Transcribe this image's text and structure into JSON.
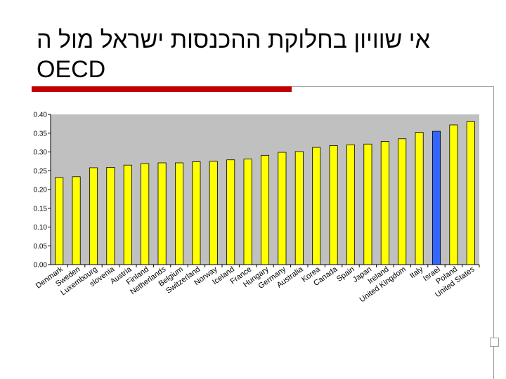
{
  "slide": {
    "title_line1": "אי שוויון בחלוקת ההכנסות ישראל מול ה",
    "title_line2": "OECD"
  },
  "colors": {
    "bar_default": "#ffff00",
    "bar_highlight": "#3366ff",
    "plot_background": "#c0c0c0",
    "accent_red": "#c00000"
  },
  "chart_data": {
    "type": "bar",
    "title": "",
    "xlabel": "",
    "ylabel": "",
    "ylim": [
      0,
      0.4
    ],
    "yticks": [
      "0.00",
      "0.05",
      "0.10",
      "0.15",
      "0.20",
      "0.25",
      "0.30",
      "0.35",
      "0.40"
    ],
    "grid": false,
    "legend": "none",
    "highlight_category": "Israel",
    "categories": [
      "Denmark",
      "Sweden",
      "Luxembourg",
      "slovenia",
      "Austria",
      "Finland",
      "Netherlands",
      "Belgium",
      "Switzerland",
      "Norway",
      "Iceland",
      "France",
      "Hungary",
      "Germany",
      "Australia",
      "Korea",
      "Canada",
      "Spain",
      "Japan",
      "Ireland",
      "United Kingdom",
      "Italy",
      "Israel",
      "Poland",
      "United States"
    ],
    "values": [
      0.232,
      0.234,
      0.258,
      0.259,
      0.265,
      0.269,
      0.271,
      0.271,
      0.274,
      0.275,
      0.279,
      0.281,
      0.291,
      0.299,
      0.301,
      0.312,
      0.317,
      0.319,
      0.321,
      0.328,
      0.335,
      0.352,
      0.355,
      0.372,
      0.381
    ]
  }
}
